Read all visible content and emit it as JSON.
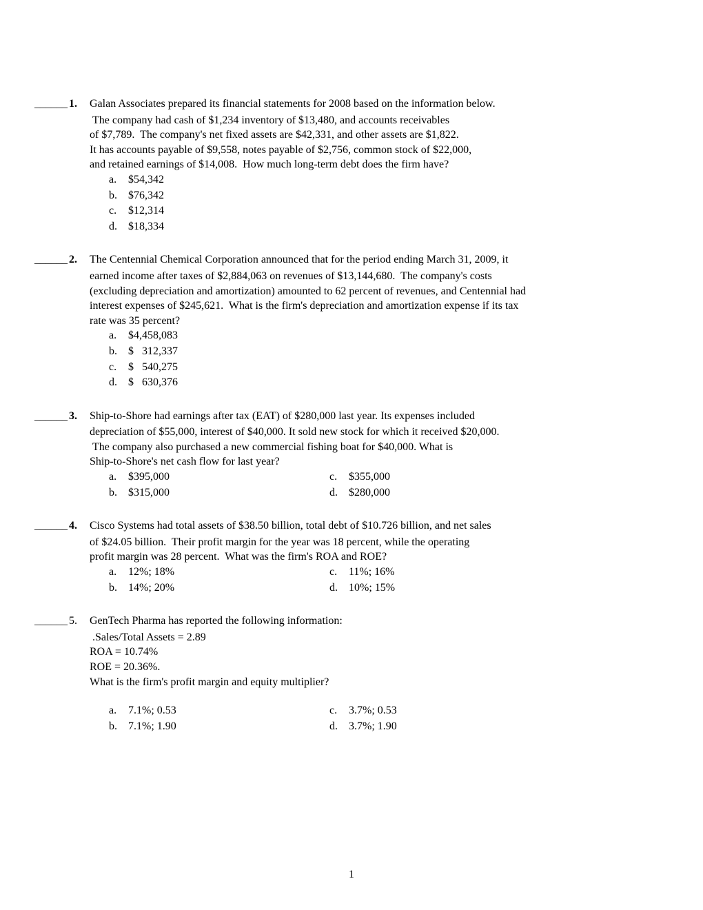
{
  "questions": [
    {
      "blank": "______",
      "num": "1.",
      "numbold": true,
      "text": "Galan Associates prepared its financial statements for 2008 based on the information below.",
      "lines": [
        " The company had cash of $1,234 inventory of $13,480, and accounts receivables",
        "of $7,789.  The company's net fixed assets are $42,331, and other assets are $1,822.",
        "It has accounts payable of $9,558, notes payable of $2,756, common stock of $22,000,",
        "and retained earnings of $14,008.  How much long-term debt does the firm have?"
      ],
      "choices_layout": "single",
      "choices": [
        {
          "l": "a.",
          "v": "$54,342"
        },
        {
          "l": "b.",
          "v": "$76,342"
        },
        {
          "l": "c.",
          "v": "$12,314"
        },
        {
          "l": "d.",
          "v": "$18,334"
        }
      ]
    },
    {
      "blank": "______",
      "num": "2.",
      "numbold": true,
      "text": "The Centennial Chemical Corporation announced that for the period ending March 31, 2009, it",
      "lines": [
        "earned income after taxes of $2,884,063 on revenues of $13,144,680.  The company's costs",
        "(excluding depreciation and amortization) amounted to 62 percent of revenues, and Centennial had",
        "interest expenses of $245,621.  What is the firm's depreciation and amortization expense if its tax",
        "rate was 35 percent?"
      ],
      "choices_layout": "single",
      "choices": [
        {
          "l": "a.",
          "v": "$4,458,083"
        },
        {
          "l": "b.",
          "v": "$   312,337"
        },
        {
          "l": "c.",
          "v": "$   540,275"
        },
        {
          "l": "d.",
          "v": "$   630,376"
        }
      ]
    },
    {
      "blank": "______",
      "num": "3.",
      "numbold": true,
      "text": "Ship-to-Shore had earnings after tax (EAT) of $280,000 last year. Its expenses included",
      "lines": [
        "depreciation of $55,000, interest of $40,000. It sold new stock for which it received $20,000.",
        " The company also purchased a new commercial fishing boat for $40,000. What is",
        "Ship-to-Shore's net cash flow for last year?"
      ],
      "choices_layout": "double",
      "choices_left": [
        {
          "l": "a.",
          "v": "$395,000"
        },
        {
          "l": "b.",
          "v": "$315,000"
        }
      ],
      "choices_right": [
        {
          "l": "c.",
          "v": "$355,000"
        },
        {
          "l": "d.",
          "v": "$280,000"
        }
      ]
    },
    {
      "blank": "______",
      "num": "4.",
      "numbold": true,
      "text": "Cisco Systems had total assets of $38.50 billion, total debt of $10.726 billion, and net sales",
      "lines": [
        "of $24.05 billion.  Their profit margin for the year was 18 percent, while the operating",
        "profit margin was 28 percent.  What was the firm's ROA and ROE?"
      ],
      "choices_layout": "double",
      "choices_left": [
        {
          "l": "a.",
          "v": "12%; 18%"
        },
        {
          "l": "b.",
          "v": "14%; 20%"
        }
      ],
      "choices_right": [
        {
          "l": "c.",
          "v": "11%; 16%"
        },
        {
          "l": "d.",
          "v": "10%; 15%"
        }
      ]
    },
    {
      "blank": "______",
      "num": "5.",
      "numbold": false,
      "text": "GenTech Pharma has reported the following information:",
      "lines": [
        " .Sales/Total Assets = 2.89",
        "ROA = 10.74%",
        "ROE = 20.36%.",
        "What is the firm's profit margin and equity multiplier?"
      ],
      "spacer": true,
      "choices_layout": "double",
      "choices_left": [
        {
          "l": "a.",
          "v": "7.1%; 0.53"
        },
        {
          "l": "b.",
          "v": "7.1%; 1.90"
        }
      ],
      "choices_right": [
        {
          "l": "c.",
          "v": "3.7%; 0.53"
        },
        {
          "l": "d.",
          "v": "3.7%; 1.90"
        }
      ]
    }
  ],
  "page_number": "1"
}
